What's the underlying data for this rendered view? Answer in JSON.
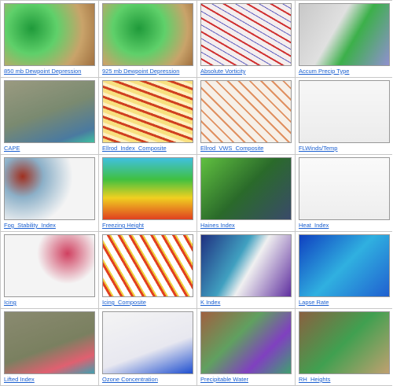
{
  "items": [
    {
      "label": "850 mb Dewpoint Depression"
    },
    {
      "label": "925 mb Dewpoint Depression"
    },
    {
      "label": "Absolute Vorticity"
    },
    {
      "label": "Accum Precip Type"
    },
    {
      "label": "CAPE"
    },
    {
      "label": "Ellrod_Index_Composite"
    },
    {
      "label": "Ellrod_VWS_Composite"
    },
    {
      "label": "FLWinds/Temp"
    },
    {
      "label": "Fog_Stability_Index"
    },
    {
      "label": "Freezing Height"
    },
    {
      "label": "Haines Index"
    },
    {
      "label": "Heat_Index"
    },
    {
      "label": "Icing"
    },
    {
      "label": "Icing_Composite"
    },
    {
      "label": "K Index"
    },
    {
      "label": "Lapse Rate"
    },
    {
      "label": "Lifted Index"
    },
    {
      "label": "Ozone Concentration"
    },
    {
      "label": "Precipitable Water"
    },
    {
      "label": "RH_Heights"
    }
  ]
}
